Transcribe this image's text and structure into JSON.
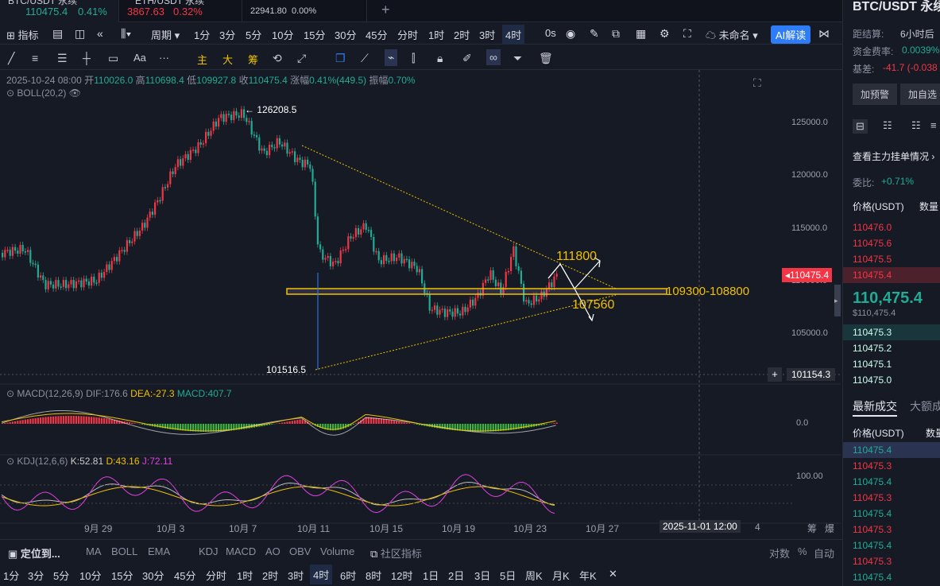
{
  "tabs": [
    {
      "name": "BTC/USDT 永续",
      "price": "110475.4",
      "change": "0.41%"
    },
    {
      "name": "ETH/USDT 永续",
      "price": "3867.63",
      "change": "0.32%"
    },
    {
      "name": "",
      "price": "22941.80",
      "change": "0.00%"
    }
  ],
  "toolbar": {
    "indicator": "指标",
    "period": "周期",
    "intervals": [
      "1分",
      "3分",
      "5分",
      "10分",
      "15分",
      "30分",
      "45分",
      "分时",
      "1时",
      "2时",
      "3时",
      "4时"
    ],
    "countdown": "0s",
    "unnamed": "未命名",
    "ai": "AI解读"
  },
  "drawbar": {
    "main": "主",
    "big": "大",
    "chip": "筹",
    "font": "Aa",
    "more": "···"
  },
  "ohlc": {
    "date": "2025-10-24 08:00",
    "open_label": "开",
    "open": "110026.0",
    "high_label": "高",
    "high": "110698.4",
    "low_label": "低",
    "low": "109927.8",
    "close_label": "收",
    "close": "110475.4",
    "chg_label": "涨幅",
    "chg": "0.41%(449.5)",
    "amp_label": "振幅",
    "amp": "0.70%"
  },
  "boll": "BOLL(20,2)",
  "annotations": {
    "high": "126208.5",
    "low": "101516.5",
    "resist": "111800",
    "support": "107560",
    "zone": "109300-108800"
  },
  "price_axis": {
    "ticks": [
      "125000.0",
      "120000.0",
      "115000.0",
      "110000.0",
      "105000.0"
    ],
    "current": "110475.4",
    "crosshair": "101154.3"
  },
  "macd": {
    "label": "MACD(12,26,9)",
    "dif": "DIF:176.6",
    "dea": "DEA:-27.3",
    "macd": "MACD:407.7",
    "zero": "0.0"
  },
  "kdj": {
    "label": "KDJ(12,6,6)",
    "k": "K:52.81",
    "d": "D:43.16",
    "j": "J:72.11",
    "level": "100.00"
  },
  "dates": [
    "9月 29",
    "10月 3",
    "10月 7",
    "10月 11",
    "10月 15",
    "10月 19",
    "10月 23",
    "10月 27",
    "4"
  ],
  "crosshair_date": "2025-11-01 12:00",
  "corner": {
    "a": "筹",
    "b": "爆"
  },
  "bottom_bar": {
    "locate": "定位到...",
    "items": [
      "MA",
      "BOLL",
      "EMA",
      "KDJ",
      "MACD",
      "AO",
      "OBV",
      "Volume"
    ],
    "community": "社区指标",
    "log": "对数",
    "pct": "%",
    "auto": "自动"
  },
  "bottom_intervals": [
    "1分",
    "3分",
    "5分",
    "10分",
    "15分",
    "30分",
    "45分",
    "分时",
    "1时",
    "2时",
    "3时",
    "4时",
    "6时",
    "8时",
    "12时",
    "1日",
    "2日",
    "3日",
    "5日",
    "周K",
    "月K",
    "年K"
  ],
  "right_panel": {
    "title": "BTC/USDT 永续",
    "settle_label": "距结算:",
    "settle": "6小时后",
    "rate_label": "资金费率:",
    "rate": "0.0039%",
    "basis_label": "基差:",
    "basis": "-41.7 (-0.038",
    "alert_btn": "加预警",
    "fav_btn": "加自选",
    "depth_link": "查看主力挂单情况",
    "ratio_label": "委比:",
    "ratio": "+0.71%",
    "col_price": "价格(USDT)",
    "col_qty": "数量",
    "asks": [
      "110476.0",
      "110475.6",
      "110475.5",
      "110475.4"
    ],
    "last": "110,475.4",
    "last_usd": "$110,475.4",
    "bids": [
      "110475.3",
      "110475.2",
      "110475.1",
      "110475.0"
    ],
    "trades_tab": "最新成交",
    "big_tab": "大额成",
    "trades": [
      {
        "p": "110475.4",
        "side": "buy"
      },
      {
        "p": "110475.3",
        "side": "sell"
      },
      {
        "p": "110475.4",
        "side": "buy"
      },
      {
        "p": "110475.3",
        "side": "sell"
      },
      {
        "p": "110475.4",
        "side": "buy"
      },
      {
        "p": "110475.3",
        "side": "sell"
      },
      {
        "p": "110475.4",
        "side": "buy"
      },
      {
        "p": "110475.3",
        "side": "sell"
      },
      {
        "p": "110475.4",
        "side": "buy"
      }
    ]
  },
  "colors": {
    "up": "#f23645",
    "down": "#22ab94",
    "accent": "#2f7df6",
    "line": "#f0c000"
  }
}
